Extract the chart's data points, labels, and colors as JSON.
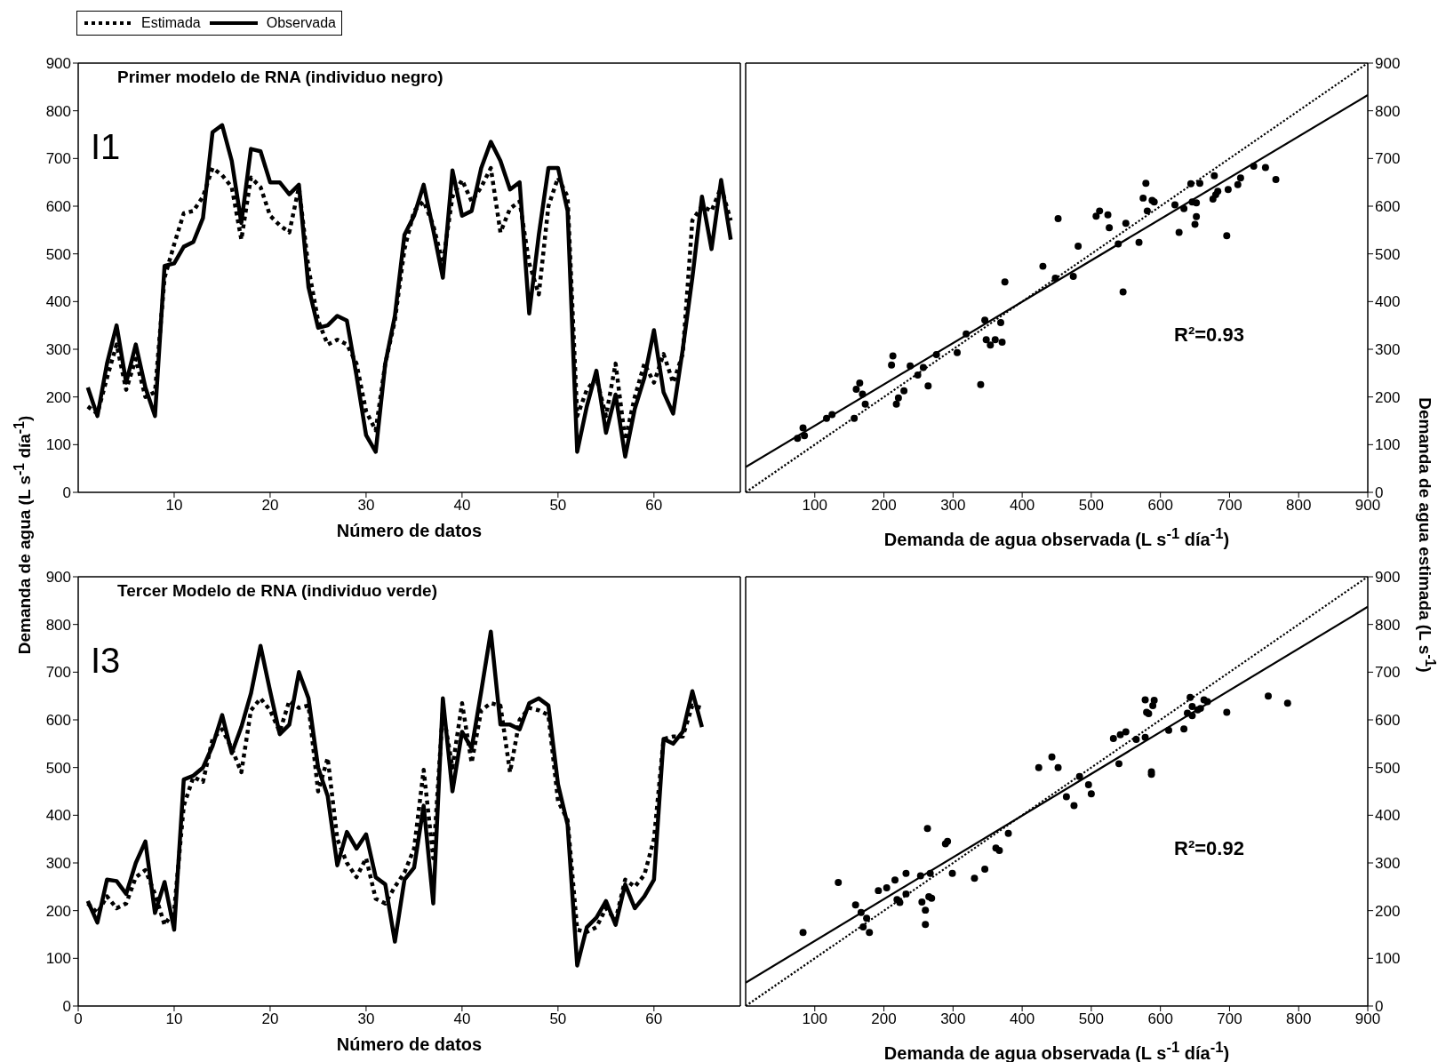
{
  "chart_data": [
    {
      "type": "line",
      "title": "Primer modelo de RNA (individuo negro)",
      "xlabel": "Número de datos",
      "ylabel": "Demanda de agua (L s$^{-1}$ día$^{-1}$)",
      "legend": "top left",
      "annotations": [
        "I1"
      ],
      "x": [
        1,
        2,
        3,
        4,
        5,
        6,
        7,
        8,
        9,
        10,
        11,
        12,
        13,
        14,
        15,
        16,
        17,
        18,
        19,
        20,
        21,
        22,
        23,
        24,
        25,
        26,
        27,
        28,
        29,
        30,
        31,
        32,
        33,
        34,
        35,
        36,
        37,
        38,
        39,
        40,
        41,
        42,
        43,
        44,
        45,
        46,
        47,
        48,
        49,
        50,
        51,
        52,
        53,
        54,
        55,
        56,
        57,
        58,
        59,
        60,
        61,
        62,
        63,
        64,
        65,
        66,
        67,
        68
      ],
      "xlim": [
        0,
        69
      ],
      "xticks": [
        10,
        20,
        30,
        40,
        50,
        60
      ],
      "ylim": [
        0,
        900
      ],
      "yticks": [
        0,
        100,
        200,
        300,
        400,
        500,
        600,
        700,
        800,
        900
      ],
      "series": [
        {
          "name": "Estimada",
          "color": "#000000",
          "line_style": "dotted",
          "values": [
            180,
            165,
            240,
            310,
            215,
            280,
            200,
            210,
            450,
            520,
            585,
            590,
            620,
            680,
            665,
            640,
            530,
            660,
            640,
            580,
            560,
            545,
            640,
            470,
            360,
            310,
            320,
            310,
            270,
            170,
            130,
            270,
            360,
            510,
            590,
            610,
            560,
            480,
            620,
            655,
            610,
            640,
            680,
            545,
            595,
            610,
            480,
            415,
            600,
            660,
            620,
            160,
            215,
            240,
            160,
            270,
            110,
            200,
            270,
            230,
            290,
            230,
            290,
            570,
            600,
            590,
            640,
            570
          ]
        },
        {
          "name": "Observada",
          "color": "#000000",
          "line_style": "solid",
          "values": [
            220,
            160,
            270,
            350,
            230,
            310,
            220,
            160,
            475,
            480,
            515,
            525,
            575,
            755,
            770,
            695,
            565,
            720,
            715,
            650,
            650,
            625,
            645,
            430,
            345,
            350,
            370,
            360,
            245,
            120,
            85,
            270,
            370,
            540,
            580,
            645,
            550,
            450,
            675,
            580,
            590,
            680,
            735,
            695,
            635,
            650,
            375,
            540,
            680,
            680,
            590,
            85,
            180,
            255,
            125,
            205,
            75,
            175,
            240,
            340,
            210,
            165,
            300,
            450,
            620,
            510,
            655,
            530
          ]
        }
      ]
    },
    {
      "type": "scatter",
      "xlabel": "Demanda de agua observada (L s$^{-1}$ día$^{-1}$)",
      "y2label": "Demanda de agua estimada (L s$^{-1}$)",
      "annotations": [
        "R²=0.93"
      ],
      "xlim": [
        0,
        900
      ],
      "xticks": [
        100,
        200,
        300,
        400,
        500,
        600,
        700,
        800,
        900
      ],
      "y2lim": [
        0,
        900
      ],
      "y2ticks": [
        0,
        100,
        200,
        300,
        400,
        500,
        600,
        700,
        800,
        900
      ],
      "series": [
        {
          "type": "scatter",
          "axis": "y2",
          "color": "#000000",
          "marker": "circle",
          "x": [
            75,
            83,
            85,
            117,
            125,
            157,
            160,
            165,
            169,
            173,
            211,
            213,
            218,
            221,
            229,
            238,
            249,
            257,
            264,
            276,
            306,
            319,
            340,
            346,
            348,
            354,
            361,
            369,
            371,
            375,
            430,
            448,
            452,
            474,
            481,
            507,
            512,
            524,
            526,
            539,
            546,
            550,
            569,
            575,
            579,
            581,
            588,
            591,
            621,
            627,
            634,
            644,
            646,
            650,
            652,
            652,
            657,
            676,
            678,
            680,
            683,
            696,
            698,
            712,
            716,
            735,
            752,
            767
          ],
          "values": [
            113,
            135,
            119,
            155,
            163,
            155,
            216,
            229,
            206,
            185,
            267,
            286,
            185,
            198,
            213,
            265,
            246,
            262,
            223,
            289,
            293,
            332,
            226,
            361,
            320,
            309,
            320,
            356,
            315,
            441,
            474,
            449,
            574,
            453,
            516,
            579,
            590,
            582,
            555,
            521,
            420,
            564,
            524,
            617,
            648,
            590,
            612,
            609,
            603,
            545,
            595,
            647,
            609,
            562,
            578,
            607,
            648,
            615,
            664,
            624,
            631,
            538,
            635,
            645,
            659,
            684,
            681,
            656
          ]
        },
        {
          "type": "line",
          "axis": "y2",
          "color": "#000000",
          "line_style": "dotted",
          "x": [
            0,
            900
          ],
          "values": [
            0,
            900
          ]
        },
        {
          "type": "line",
          "axis": "y2",
          "color": "#000000",
          "line_style": "solid",
          "x": [
            0,
            900
          ],
          "values": [
            53,
            833
          ]
        }
      ]
    },
    {
      "type": "line",
      "title": "Tercer Modelo de RNA (individuo verde)",
      "xlabel": "Número de datos",
      "annotations": [
        "I3"
      ],
      "x": [
        1,
        2,
        3,
        4,
        5,
        6,
        7,
        8,
        9,
        10,
        11,
        12,
        13,
        14,
        15,
        16,
        17,
        18,
        19,
        20,
        21,
        22,
        23,
        24,
        25,
        26,
        27,
        28,
        29,
        30,
        31,
        32,
        33,
        34,
        35,
        36,
        37,
        38,
        39,
        40,
        41,
        42,
        43,
        44,
        45,
        46,
        47,
        48,
        49,
        50,
        51,
        52,
        53,
        54,
        55,
        56,
        57,
        58,
        59,
        60,
        61,
        62,
        63,
        64,
        65
      ],
      "xlim": [
        0,
        69
      ],
      "xticks": [
        0,
        10,
        20,
        30,
        40,
        50,
        60
      ],
      "ylim": [
        0,
        900
      ],
      "yticks": [
        0,
        100,
        200,
        300,
        400,
        500,
        600,
        700,
        800,
        900
      ],
      "series": [
        {
          "color": "#000000",
          "line_style": "dotted",
          "values": [
            215,
            195,
            230,
            205,
            215,
            270,
            285,
            235,
            170,
            200,
            420,
            480,
            470,
            560,
            580,
            540,
            490,
            620,
            645,
            620,
            575,
            640,
            625,
            630,
            450,
            520,
            350,
            300,
            270,
            310,
            225,
            215,
            250,
            280,
            330,
            495,
            310,
            620,
            500,
            635,
            510,
            620,
            635,
            630,
            490,
            600,
            625,
            620,
            610,
            430,
            390,
            160,
            155,
            165,
            205,
            180,
            265,
            250,
            275,
            350,
            560,
            565,
            565,
            630,
            625
          ]
        },
        {
          "color": "#000000",
          "line_style": "solid",
          "values": [
            220,
            175,
            265,
            262,
            235,
            300,
            345,
            195,
            260,
            160,
            475,
            483,
            500,
            545,
            610,
            530,
            585,
            655,
            755,
            660,
            570,
            590,
            700,
            645,
            500,
            440,
            295,
            365,
            330,
            360,
            270,
            255,
            135,
            265,
            290,
            420,
            215,
            645,
            450,
            575,
            540,
            660,
            785,
            590,
            590,
            580,
            635,
            645,
            630,
            465,
            380,
            85,
            165,
            185,
            220,
            170,
            255,
            205,
            230,
            265,
            560,
            550,
            575,
            660,
            585
          ]
        }
      ]
    },
    {
      "type": "scatter",
      "xlabel": "Demanda de agua observada (L s$^{-1}$ día$^{-1}$)",
      "annotations": [
        "R²=0.92"
      ],
      "xlim": [
        0,
        900
      ],
      "xticks": [
        100,
        200,
        300,
        400,
        500,
        600,
        700,
        800,
        900
      ],
      "y2lim": [
        0,
        900
      ],
      "y2ticks": [
        0,
        100,
        200,
        300,
        400,
        500,
        600,
        700,
        800,
        900
      ],
      "series": [
        {
          "type": "scatter",
          "axis": "y2",
          "color": "#000000",
          "marker": "circle",
          "x": [
            83,
            134,
            159,
            167,
            170,
            175,
            179,
            192,
            204,
            216,
            219,
            223,
            232,
            232,
            253,
            255,
            260,
            260,
            263,
            265,
            267,
            269,
            289,
            292,
            299,
            331,
            346,
            362,
            367,
            380,
            424,
            443,
            452,
            464,
            475,
            483,
            496,
            500,
            532,
            540,
            542,
            550,
            565,
            578,
            578,
            580,
            583,
            587,
            587,
            589,
            591,
            612,
            634,
            639,
            643,
            646,
            646,
            654,
            658,
            663,
            668,
            696,
            756,
            784
          ],
          "values": [
            154,
            259,
            212,
            196,
            166,
            184,
            154,
            242,
            248,
            264,
            223,
            217,
            278,
            235,
            273,
            218,
            201,
            171,
            372,
            229,
            278,
            226,
            340,
            345,
            278,
            268,
            287,
            331,
            326,
            362,
            500,
            522,
            500,
            439,
            420,
            481,
            464,
            445,
            561,
            508,
            569,
            575,
            559,
            642,
            563,
            616,
            613,
            491,
            486,
            630,
            641,
            578,
            581,
            614,
            647,
            628,
            609,
            621,
            624,
            642,
            638,
            616,
            650,
            635
          ]
        },
        {
          "type": "line",
          "axis": "y2",
          "color": "#000000",
          "line_style": "dotted",
          "x": [
            0,
            900
          ],
          "values": [
            0,
            900
          ]
        },
        {
          "type": "line",
          "axis": "y2",
          "color": "#000000",
          "line_style": "solid",
          "x": [
            0,
            900
          ],
          "values": [
            49,
            837
          ]
        }
      ]
    }
  ]
}
